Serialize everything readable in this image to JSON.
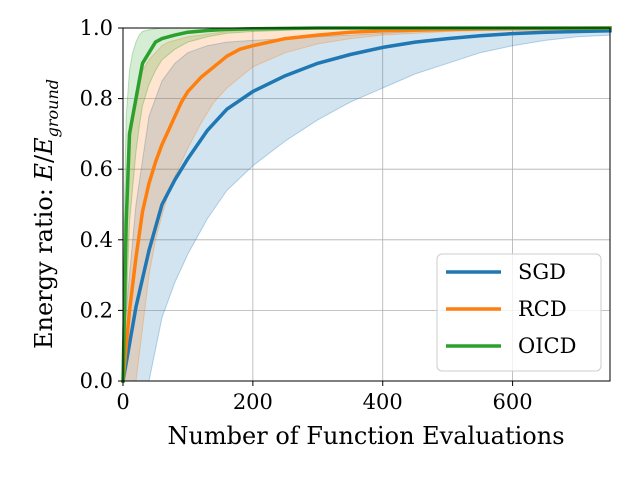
{
  "chart_data": {
    "type": "line",
    "title": "",
    "xlabel": "Number of Function Evaluations",
    "ylabel_prefix": "Energy ratio: ",
    "ylabel_E": "E",
    "ylabel_slash": "/",
    "ylabel_sub_base": "E",
    "ylabel_subscript": "ground",
    "xlim": [
      0,
      750
    ],
    "ylim": [
      0,
      1.0
    ],
    "xticks": [
      0,
      200,
      400,
      600
    ],
    "xtick_labels": [
      "0",
      "200",
      "400",
      "600"
    ],
    "yticks": [
      0.0,
      0.2,
      0.4,
      0.6,
      0.8,
      1.0
    ],
    "ytick_labels": [
      "0.0",
      "0.2",
      "0.4",
      "0.6",
      "0.8",
      "1.0"
    ],
    "grid": true,
    "legend_position": "lower-right",
    "series": [
      {
        "name": "SGD",
        "color": "#1f77b4",
        "x": [
          0,
          20,
          40,
          60,
          80,
          100,
          130,
          160,
          200,
          250,
          300,
          350,
          400,
          450,
          500,
          550,
          600,
          650,
          700,
          750
        ],
        "y": [
          0.0,
          0.21,
          0.37,
          0.5,
          0.57,
          0.63,
          0.71,
          0.77,
          0.82,
          0.865,
          0.9,
          0.925,
          0.945,
          0.96,
          0.97,
          0.978,
          0.984,
          0.988,
          0.99,
          0.992
        ],
        "lower": [
          0.0,
          0.0,
          0.0,
          0.18,
          0.28,
          0.36,
          0.46,
          0.54,
          0.61,
          0.68,
          0.74,
          0.79,
          0.83,
          0.87,
          0.9,
          0.93,
          0.95,
          0.965,
          0.975,
          0.98
        ],
        "upper": [
          0.1,
          0.5,
          0.75,
          0.85,
          0.9,
          0.93,
          0.95,
          0.96,
          0.965,
          0.97,
          0.975,
          0.98,
          0.985,
          0.99,
          0.992,
          0.995,
          0.997,
          0.998,
          0.999,
          1.0
        ]
      },
      {
        "name": "RCD",
        "color": "#ff7f0e",
        "x": [
          0,
          10,
          20,
          30,
          40,
          50,
          60,
          70,
          80,
          90,
          100,
          120,
          140,
          160,
          180,
          200,
          250,
          300,
          350,
          400,
          500,
          600,
          750
        ],
        "y": [
          0.0,
          0.2,
          0.35,
          0.48,
          0.56,
          0.62,
          0.67,
          0.71,
          0.75,
          0.79,
          0.82,
          0.86,
          0.89,
          0.92,
          0.94,
          0.95,
          0.97,
          0.98,
          0.988,
          0.992,
          0.996,
          0.998,
          1.0
        ],
        "lower": [
          0.0,
          0.0,
          0.0,
          0.15,
          0.3,
          0.4,
          0.47,
          0.53,
          0.58,
          0.62,
          0.66,
          0.73,
          0.79,
          0.83,
          0.86,
          0.89,
          0.93,
          0.955,
          0.97,
          0.98,
          0.99,
          0.995,
          0.998
        ],
        "upper": [
          0.25,
          0.7,
          0.82,
          0.88,
          0.91,
          0.93,
          0.95,
          0.96,
          0.965,
          0.97,
          0.975,
          0.98,
          0.985,
          0.99,
          0.992,
          0.995,
          0.997,
          0.998,
          0.999,
          1.0,
          1.0,
          1.0,
          1.0
        ]
      },
      {
        "name": "OICD",
        "color": "#2ca02c",
        "x": [
          0,
          5,
          10,
          15,
          20,
          25,
          30,
          40,
          50,
          60,
          80,
          100,
          130,
          160,
          200,
          300,
          400,
          500,
          750
        ],
        "y": [
          0.0,
          0.45,
          0.7,
          0.75,
          0.8,
          0.85,
          0.9,
          0.93,
          0.96,
          0.97,
          0.98,
          0.988,
          0.993,
          0.996,
          0.998,
          1.0,
          1.0,
          1.0,
          1.0
        ],
        "lower": [
          0.0,
          0.2,
          0.45,
          0.55,
          0.65,
          0.72,
          0.78,
          0.84,
          0.88,
          0.91,
          0.94,
          0.96,
          0.975,
          0.985,
          0.99,
          0.997,
          0.999,
          1.0,
          1.0
        ],
        "upper": [
          0.3,
          0.75,
          0.88,
          0.93,
          0.96,
          0.98,
          0.99,
          0.995,
          0.998,
          1.0,
          1.0,
          1.0,
          1.0,
          1.0,
          1.0,
          1.0,
          1.0,
          1.0,
          1.0
        ]
      }
    ]
  }
}
